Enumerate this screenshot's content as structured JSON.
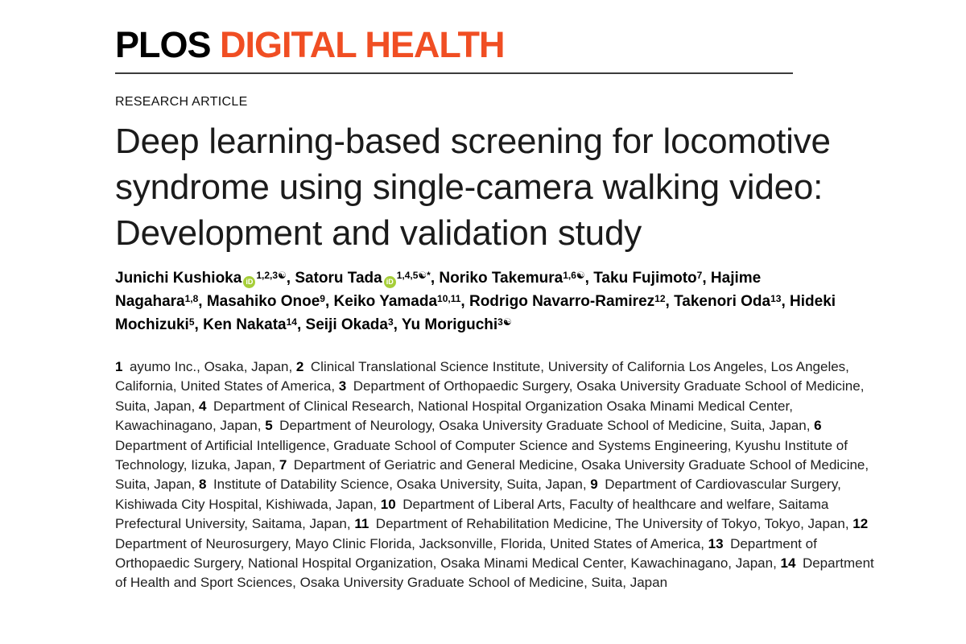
{
  "journal": {
    "logo_primary": "PLOS",
    "logo_secondary": "DIGITAL HEALTH",
    "accent_color": "#F04E23"
  },
  "article": {
    "type_label": "RESEARCH ARTICLE",
    "title": "Deep learning-based screening for locomotive syndrome using single-camera walking video: Development and validation study"
  },
  "icons": {
    "orcid_label": "iD",
    "orcid_color": "#A6CE39"
  },
  "authors": [
    {
      "name": "Junichi Kushioka",
      "orcid": true,
      "sup": "1,2,3☯"
    },
    {
      "name": "Satoru Tada",
      "orcid": true,
      "sup": "1,4,5☯*"
    },
    {
      "name": "Noriko Takemura",
      "orcid": false,
      "sup": "1,6☯"
    },
    {
      "name": "Taku Fujimoto",
      "orcid": false,
      "sup": "7"
    },
    {
      "name": "Hajime Nagahara",
      "orcid": false,
      "sup": "1,8"
    },
    {
      "name": "Masahiko Onoe",
      "orcid": false,
      "sup": "9"
    },
    {
      "name": "Keiko Yamada",
      "orcid": false,
      "sup": "10,11"
    },
    {
      "name": "Rodrigo Navarro-Ramirez",
      "orcid": false,
      "sup": "12"
    },
    {
      "name": "Takenori Oda",
      "orcid": false,
      "sup": "13"
    },
    {
      "name": "Hideki Mochizuki",
      "orcid": false,
      "sup": "5"
    },
    {
      "name": "Ken Nakata",
      "orcid": false,
      "sup": "14"
    },
    {
      "name": "Seiji Okada",
      "orcid": false,
      "sup": "3"
    },
    {
      "name": "Yu Moriguchi",
      "orcid": false,
      "sup": "3☯"
    }
  ],
  "affiliations": [
    {
      "num": "1",
      "text": "ayumo Inc., Osaka, Japan"
    },
    {
      "num": "2",
      "text": "Clinical Translational Science Institute, University of California Los Angeles, Los Angeles, California, United States of America"
    },
    {
      "num": "3",
      "text": "Department of Orthopaedic Surgery, Osaka University Graduate School of Medicine, Suita, Japan"
    },
    {
      "num": "4",
      "text": "Department of Clinical Research, National Hospital Organization Osaka Minami Medical Center, Kawachinagano, Japan"
    },
    {
      "num": "5",
      "text": "Department of Neurology, Osaka University Graduate School of Medicine, Suita, Japan"
    },
    {
      "num": "6",
      "text": "Department of Artificial Intelligence, Graduate School of Computer Science and Systems Engineering, Kyushu Institute of Technology, Iizuka, Japan"
    },
    {
      "num": "7",
      "text": "Department of Geriatric and General Medicine, Osaka University Graduate School of Medicine, Suita, Japan"
    },
    {
      "num": "8",
      "text": "Institute of Datability Science, Osaka University, Suita, Japan"
    },
    {
      "num": "9",
      "text": "Department of Cardiovascular Surgery, Kishiwada City Hospital, Kishiwada, Japan"
    },
    {
      "num": "10",
      "text": "Department of Liberal Arts, Faculty of healthcare and welfare, Saitama Prefectural University, Saitama, Japan"
    },
    {
      "num": "11",
      "text": "Department of Rehabilitation Medicine, The University of Tokyo, Tokyo, Japan"
    },
    {
      "num": "12",
      "text": "Department of Neurosurgery, Mayo Clinic Florida, Jacksonville, Florida, United States of America"
    },
    {
      "num": "13",
      "text": "Department of Orthopaedic Surgery, National Hospital Organization, Osaka Minami Medical Center, Kawachinagano, Japan"
    },
    {
      "num": "14",
      "text": "Department of Health and Sport Sciences, Osaka University Graduate School of Medicine, Suita, Japan"
    }
  ]
}
